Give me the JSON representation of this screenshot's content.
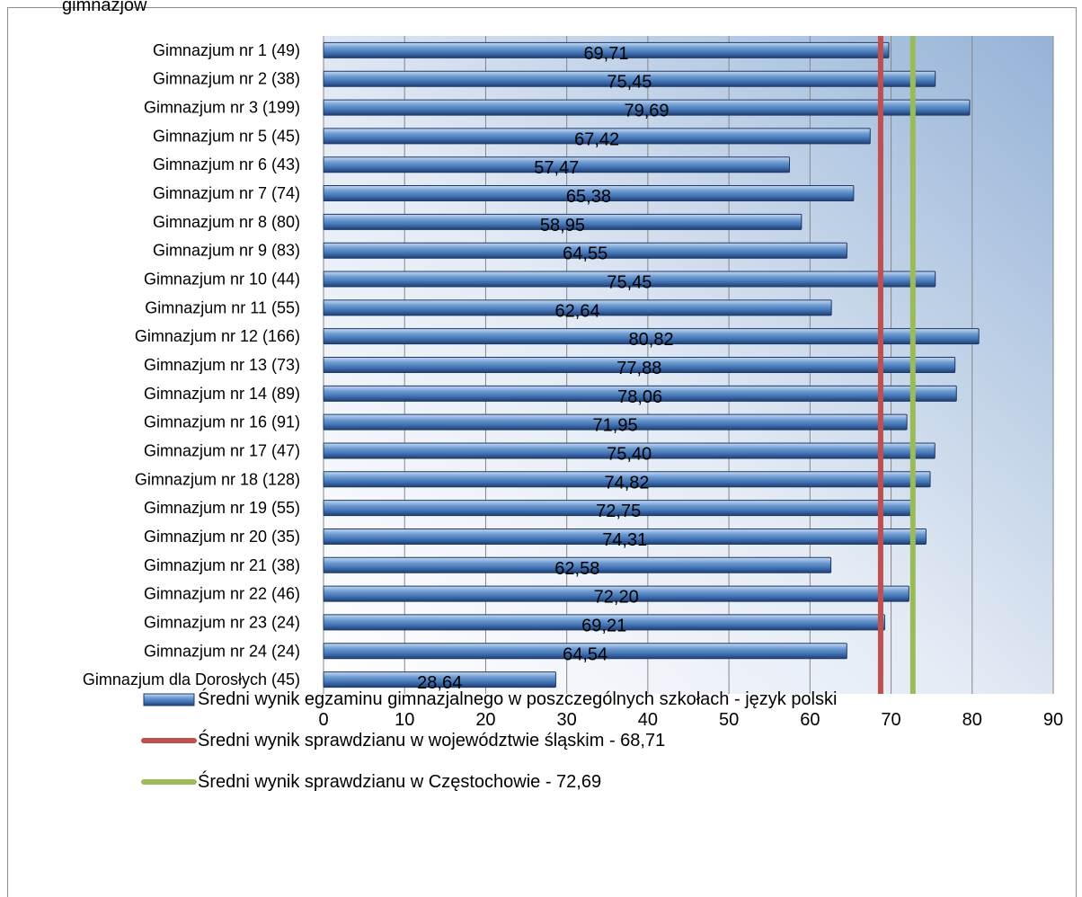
{
  "header": {
    "partial_text": "gimnazjów"
  },
  "chart_data": {
    "type": "bar",
    "orientation": "horizontal",
    "categories": [
      "Gimnazjum nr 1 (49)",
      "Gimnazjum nr 2  (38)",
      "Gimnazjum nr 3 (199)",
      "Gimnazjum nr 5 (45)",
      "Gimnazjum nr 6 (43)",
      "Gimnazjum nr 7 (74)",
      "Gimnazjum nr 8 (80)",
      "Gimnazjum nr 9 (83)",
      "Gimnazjum nr 10 (44)",
      "Gimnazjum nr 11 (55)",
      "Gimnazjum nr 12 (166)",
      "Gimnazjum nr 13 (73)",
      "Gimnazjum nr 14 (89)",
      "Gimnazjum nr 16 (91)",
      "Gimnazjum nr 17 (47)",
      "Gimnazjum nr 18 (128)",
      "Gimnazjum nr 19 (55)",
      "Gimnazjum nr 20 (35)",
      "Gimnazjum nr 21 (38)",
      "Gimnazjum nr 22 (46)",
      "Gimnazjum nr 23 (24)",
      "Gimnazjum nr 24 (24)",
      "Gimnazjum dla Dorosłych (45)"
    ],
    "values": [
      69.71,
      75.45,
      79.69,
      67.42,
      57.47,
      65.38,
      58.95,
      64.55,
      75.45,
      62.64,
      80.82,
      77.88,
      78.06,
      71.95,
      75.4,
      74.82,
      72.75,
      74.31,
      62.58,
      72.2,
      69.21,
      64.54,
      28.64
    ],
    "data_labels": [
      "69,71",
      "75,45",
      "79,69",
      "67,42",
      "57,47",
      "65,38",
      "58,95",
      "64,55",
      "75,45",
      "62,64",
      "80,82",
      "77,88",
      "78,06",
      "71,95",
      "75,40",
      "74,82",
      "72,75",
      "74,31",
      "62,58",
      "72,20",
      "69,21",
      "64,54",
      "28,64"
    ],
    "xlim": [
      0,
      90
    ],
    "xticks": [
      "0",
      "10",
      "20",
      "30",
      "40",
      "50",
      "60",
      "70",
      "80",
      "90"
    ],
    "grid": true,
    "reference_lines": [
      {
        "name": "Średni wynik sprawdzianu w województwie śląskim - 68,71",
        "value": 68.71,
        "color": "#c0504d"
      },
      {
        "name": "Średni wynik sprawdzianu w Częstochowie - 72,69",
        "value": 72.69,
        "color": "#9bbb59"
      }
    ],
    "series": [
      {
        "name": "Średni wynik egzaminu gimnazjalnego w poszczególnych szkołach - język polski",
        "color": "#4f81bd"
      }
    ],
    "legend_position": "bottom"
  }
}
